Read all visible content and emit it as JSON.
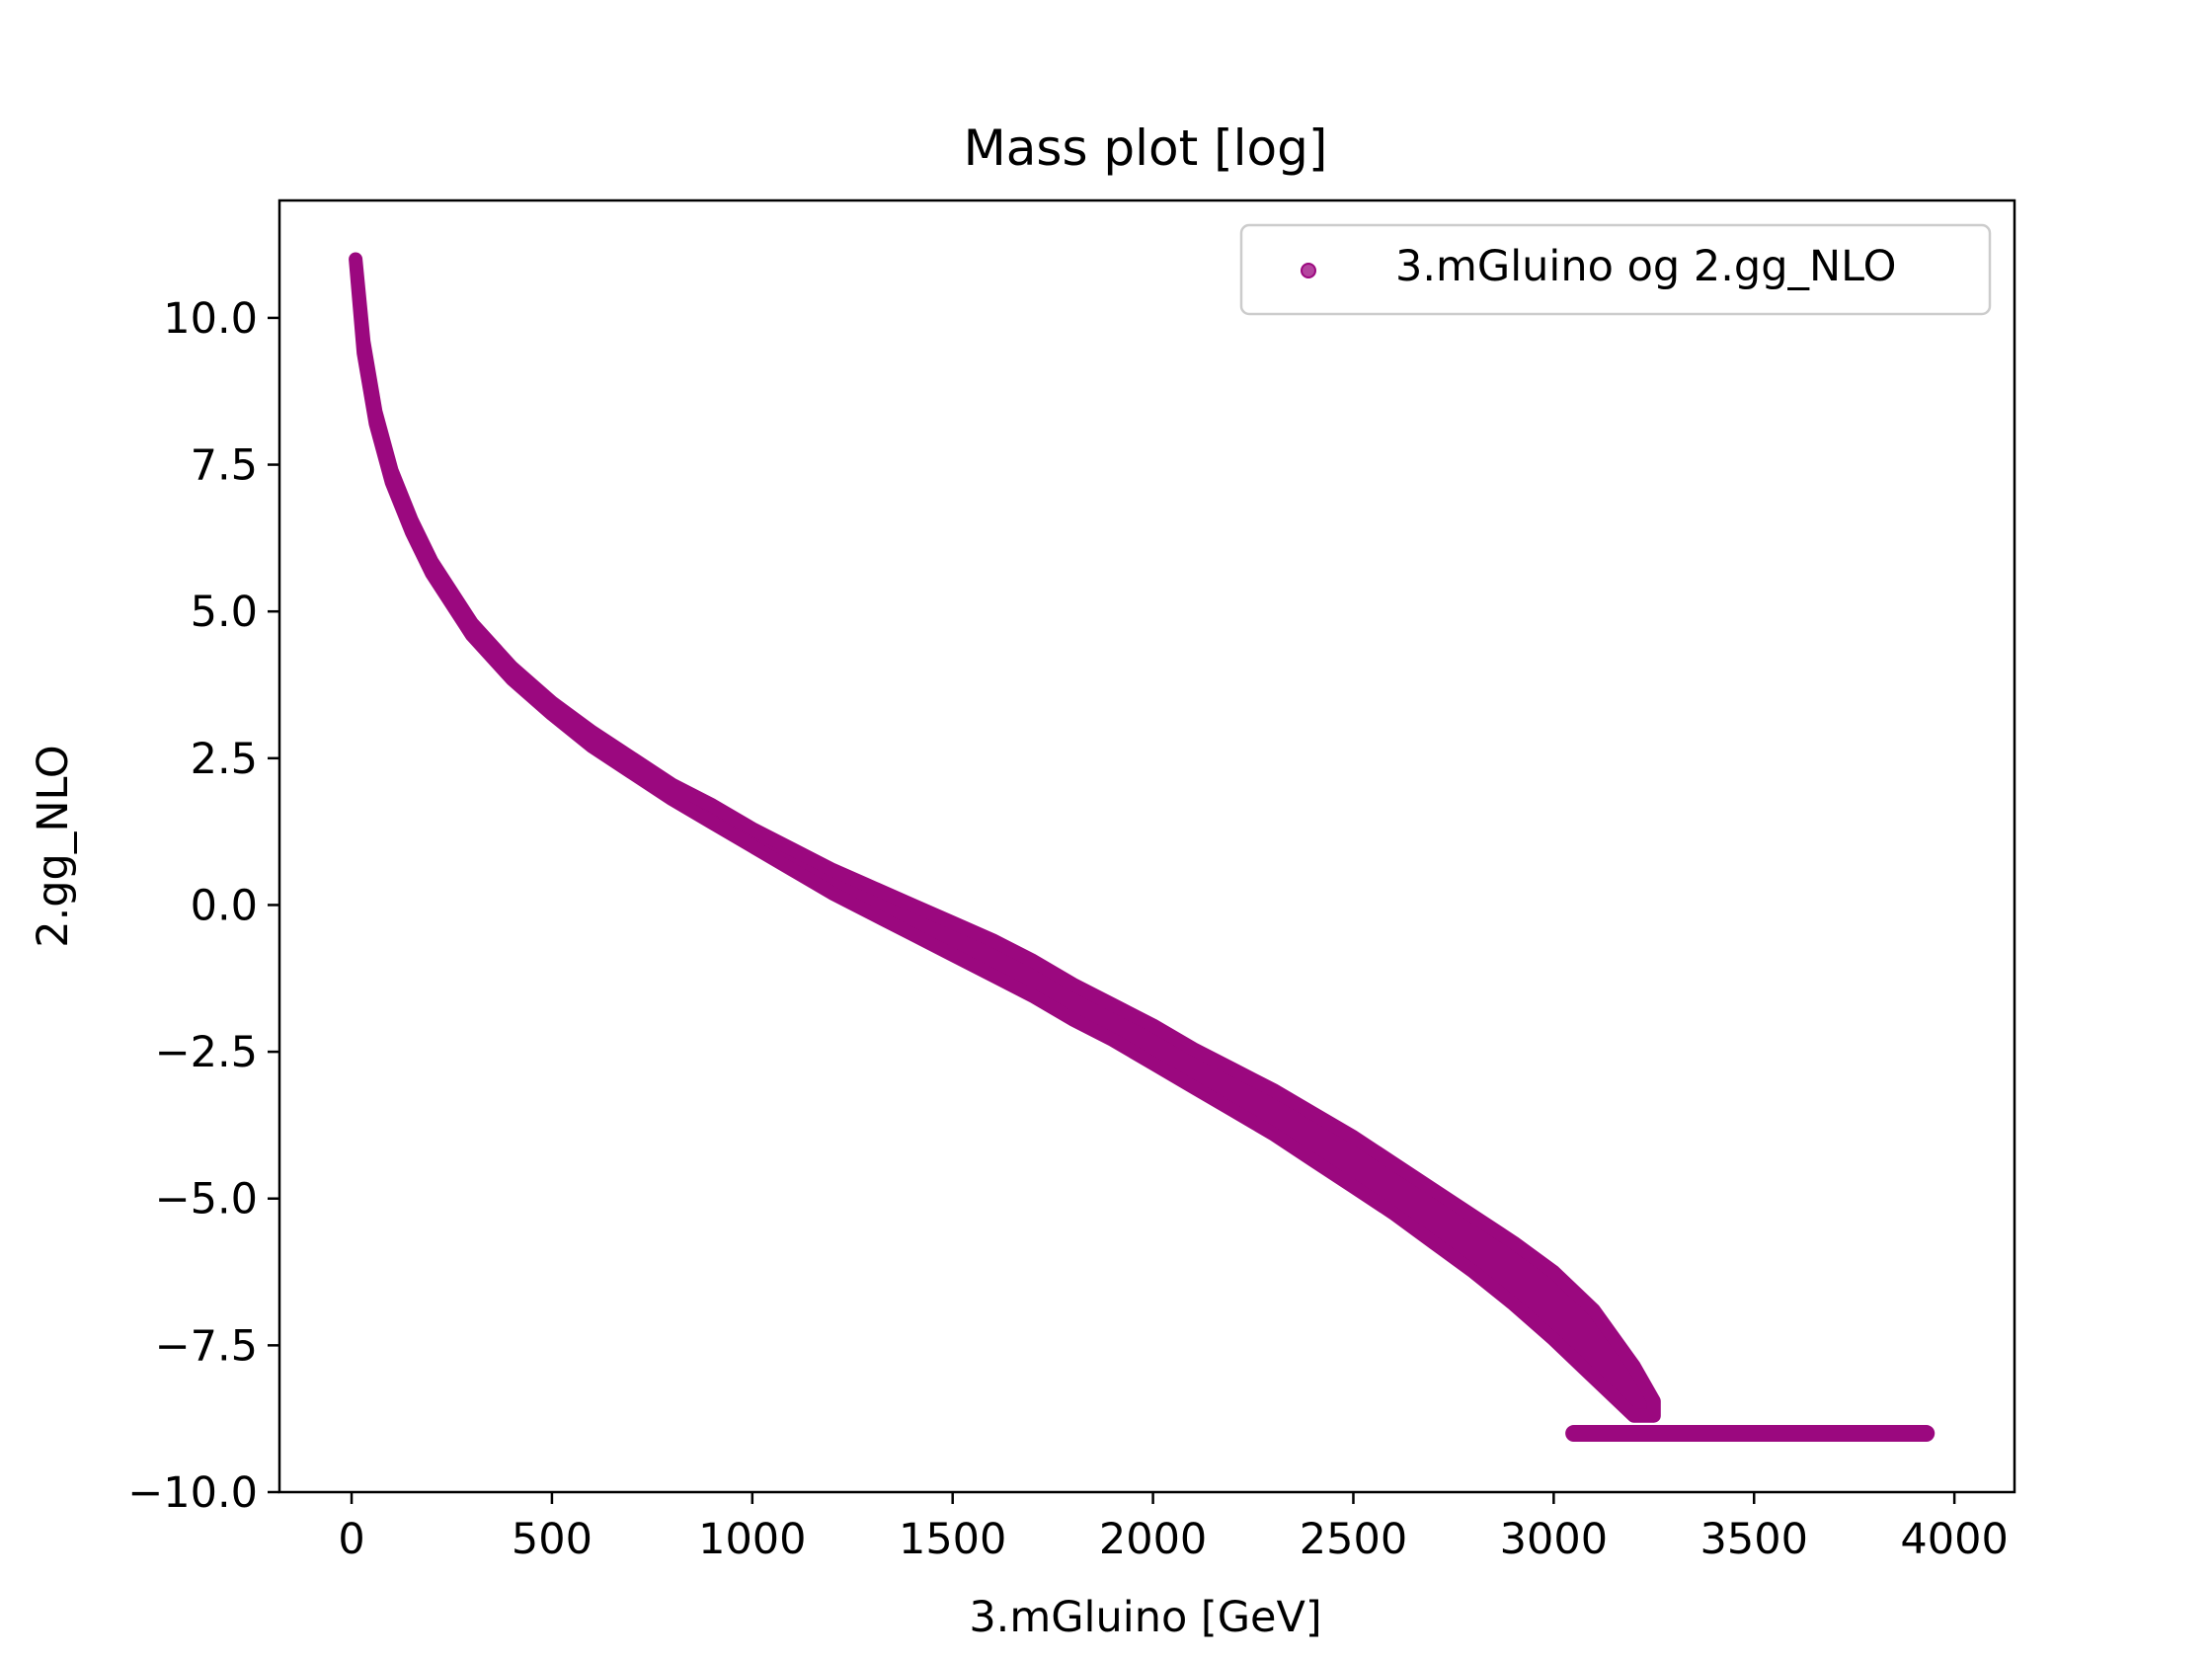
{
  "chart_data": {
    "type": "scatter",
    "title": "Mass plot [log]",
    "xlabel": "3.mGluino [GeV]",
    "ylabel": "2.gg_NLO",
    "xlim": [
      -180,
      4150
    ],
    "ylim": [
      -10.0,
      12.0
    ],
    "xticks": [
      0,
      500,
      1000,
      1500,
      2000,
      2500,
      3000,
      3500,
      4000
    ],
    "xtick_labels": [
      "0",
      "500",
      "1000",
      "1500",
      "2000",
      "2500",
      "3000",
      "3500",
      "4000"
    ],
    "yticks": [
      10.0,
      7.5,
      5.0,
      2.5,
      0.0,
      -2.5,
      -5.0,
      -7.5,
      -10.0
    ],
    "ytick_labels": [
      "10.0",
      "7.5",
      "5.0",
      "2.5",
      "0.0",
      "−2.5",
      "−5.0",
      "−7.5",
      "−10.0"
    ],
    "grid": false,
    "legend_position": "top-right",
    "series": [
      {
        "name": "3.mGluino og 2.gg_NLO",
        "color": "#9b087f",
        "points_upper": [
          [
            10,
            11.0
          ],
          [
            30,
            9.6
          ],
          [
            60,
            8.4
          ],
          [
            100,
            7.4
          ],
          [
            150,
            6.55
          ],
          [
            200,
            5.85
          ],
          [
            300,
            4.8
          ],
          [
            400,
            4.05
          ],
          [
            500,
            3.45
          ],
          [
            600,
            2.95
          ],
          [
            700,
            2.5
          ],
          [
            800,
            2.05
          ],
          [
            900,
            1.7
          ],
          [
            1000,
            1.3
          ],
          [
            1100,
            0.95
          ],
          [
            1200,
            0.6
          ],
          [
            1300,
            0.3
          ],
          [
            1400,
            0.0
          ],
          [
            1500,
            -0.3
          ],
          [
            1600,
            -0.6
          ],
          [
            1700,
            -0.95
          ],
          [
            1800,
            -1.35
          ],
          [
            1900,
            -1.7
          ],
          [
            2000,
            -2.05
          ],
          [
            2100,
            -2.45
          ],
          [
            2200,
            -2.8
          ],
          [
            2300,
            -3.15
          ],
          [
            2400,
            -3.55
          ],
          [
            2500,
            -3.95
          ],
          [
            2600,
            -4.4
          ],
          [
            2700,
            -4.85
          ],
          [
            2800,
            -5.3
          ],
          [
            2900,
            -5.75
          ],
          [
            3000,
            -6.25
          ],
          [
            3100,
            -6.9
          ],
          [
            3200,
            -7.85
          ],
          [
            3250,
            -8.45
          ]
        ],
        "points_lower": [
          [
            10,
            11.0
          ],
          [
            30,
            9.4
          ],
          [
            60,
            8.2
          ],
          [
            100,
            7.2
          ],
          [
            150,
            6.35
          ],
          [
            200,
            5.65
          ],
          [
            300,
            4.6
          ],
          [
            400,
            3.85
          ],
          [
            500,
            3.25
          ],
          [
            600,
            2.7
          ],
          [
            700,
            2.25
          ],
          [
            800,
            1.8
          ],
          [
            900,
            1.4
          ],
          [
            1000,
            1.0
          ],
          [
            1100,
            0.6
          ],
          [
            1200,
            0.2
          ],
          [
            1300,
            -0.15
          ],
          [
            1400,
            -0.5
          ],
          [
            1500,
            -0.85
          ],
          [
            1600,
            -1.2
          ],
          [
            1700,
            -1.55
          ],
          [
            1800,
            -1.95
          ],
          [
            1900,
            -2.3
          ],
          [
            2000,
            -2.7
          ],
          [
            2100,
            -3.1
          ],
          [
            2200,
            -3.5
          ],
          [
            2300,
            -3.9
          ],
          [
            2400,
            -4.35
          ],
          [
            2500,
            -4.8
          ],
          [
            2600,
            -5.25
          ],
          [
            2700,
            -5.75
          ],
          [
            2800,
            -6.25
          ],
          [
            2900,
            -6.8
          ],
          [
            3000,
            -7.4
          ],
          [
            3100,
            -8.05
          ],
          [
            3200,
            -8.7
          ],
          [
            3250,
            -8.7
          ]
        ],
        "floor": {
          "x_start": 3050,
          "x_end": 3930,
          "y": -9.0
        }
      }
    ]
  }
}
